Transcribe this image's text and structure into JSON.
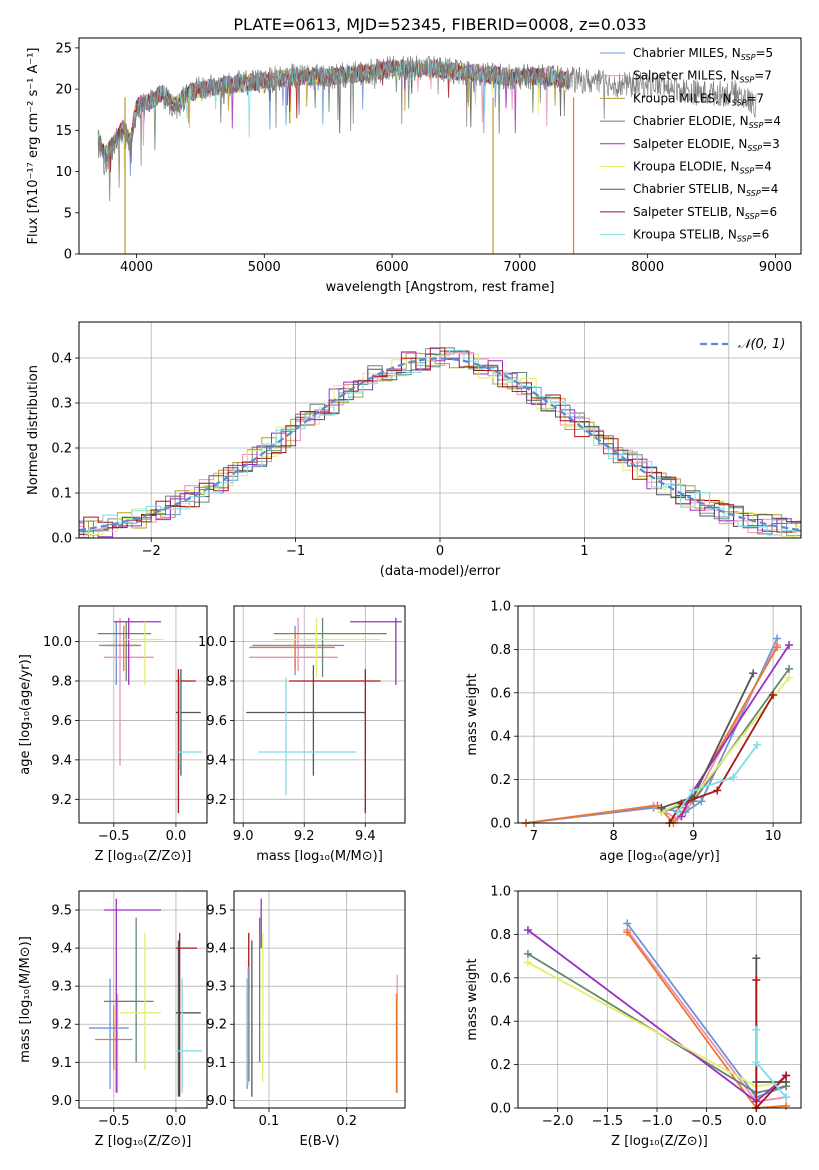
{
  "figure": {
    "title": "PLATE=0613, MJD=52345, FIBERID=0008, z=0.033"
  },
  "models": [
    {
      "label": "Chabrier MILES, N",
      "sub": "SSP",
      "suffix": "=5",
      "color": "#6b95d8"
    },
    {
      "label": "Salpeter MILES, N",
      "sub": "SSP",
      "suffix": "=7",
      "color": "#ef8fb8"
    },
    {
      "label": "Kroupa MILES, N",
      "sub": "SSP",
      "suffix": "=7",
      "color": "#b89b2a"
    },
    {
      "label": "Chabrier ELODIE, N",
      "sub": "SSP",
      "suffix": "=4",
      "color": "#66876e"
    },
    {
      "label": "Salpeter ELODIE, N",
      "sub": "SSP",
      "suffix": "=3",
      "color": "#9b30c0"
    },
    {
      "label": "Kroupa ELODIE, N",
      "sub": "SSP",
      "suffix": "=4",
      "color": "#e3ee6a"
    },
    {
      "label": "Chabrier STELIB, N",
      "sub": "SSP",
      "suffix": "=4",
      "color": "#555555"
    },
    {
      "label": "Salpeter STELIB, N",
      "sub": "SSP",
      "suffix": "=6",
      "color": "#aa1515"
    },
    {
      "label": "Kroupa STELIB, N",
      "sub": "SSP",
      "suffix": "=6",
      "color": "#7fdde6"
    }
  ],
  "chart_data": [
    {
      "id": "spectrum",
      "type": "line",
      "xlabel": "wavelength [Angstrom, rest frame]",
      "ylabel": "Flux [fλ10⁻¹⁷ erg cm⁻² s⁻¹ A⁻¹]",
      "xlim": [
        3550,
        9200
      ],
      "ylim": [
        0,
        26.2
      ],
      "xticks": [
        4000,
        5000,
        6000,
        7000,
        8000,
        9000
      ],
      "yticks": [
        0,
        5,
        10,
        15,
        20,
        25
      ],
      "data_series": {
        "name": "data",
        "color": "#808080",
        "x": [
          3700,
          3750,
          3800,
          3850,
          3900,
          3950,
          4000,
          4100,
          4200,
          4300,
          4400,
          4500,
          4700,
          5000,
          5200,
          5500,
          5800,
          6000,
          6300,
          6600,
          6900,
          7200,
          7500,
          7800,
          8100,
          8400,
          8700,
          8850
        ],
        "y": [
          13.5,
          11,
          12.5,
          14,
          15,
          13,
          17.5,
          18.5,
          19.5,
          17.5,
          19.5,
          20,
          20.5,
          21,
          21.5,
          21.5,
          22,
          22.5,
          22.5,
          22,
          21.5,
          21.5,
          21,
          20.5,
          20.5,
          19.5,
          19.5,
          18
        ]
      },
      "model_series": {
        "name": "model",
        "color": "#7fdde6",
        "x": [
          3700,
          3750,
          3800,
          3850,
          3900,
          3950,
          4000,
          4100,
          4200,
          4300,
          4400,
          4500,
          4700,
          5000,
          5200,
          5500,
          5800,
          6000,
          6300,
          6600,
          6900,
          7200,
          7400
        ],
        "y": [
          14,
          12,
          13,
          14,
          15.5,
          13.5,
          18,
          18.5,
          19.5,
          18,
          19.5,
          20,
          20.5,
          21,
          21.5,
          21.5,
          22,
          22.5,
          22.5,
          22,
          21.5,
          21.5,
          21
        ]
      }
    },
    {
      "id": "residuals",
      "type": "step",
      "xlabel": "(data-model)/error",
      "ylabel": "Normed distribution",
      "xlim": [
        -2.5,
        2.5
      ],
      "ylim": [
        0,
        0.48
      ],
      "xticks": [
        -2,
        -1,
        0,
        1,
        2
      ],
      "xticklabels": [
        "−2",
        "−1",
        "0",
        "1",
        "2"
      ],
      "yticks": [
        0.0,
        0.1,
        0.2,
        0.3,
        0.4
      ],
      "yticklabels": [
        "0.0",
        "0.1",
        "0.2",
        "0.3",
        "0.4"
      ],
      "legend": "𝒩(0, 1)",
      "gaussian": {
        "mu": 0,
        "sigma": 1,
        "color": "#5b8ad6"
      }
    },
    {
      "id": "age-vs-Z",
      "type": "errorbar",
      "xlabel": "Z [log₁₀(Z/Z⊙)]",
      "ylabel": "age  [log₁₀(age/yr)]",
      "xlim": [
        -0.78,
        0.25
      ],
      "ylim": [
        9.08,
        10.18
      ],
      "xticks": [
        -0.5,
        0.0
      ],
      "xticklabels": [
        "−0.5",
        "0.0"
      ],
      "yticks": [
        9.2,
        9.4,
        9.6,
        9.8,
        10.0
      ],
      "yticklabels": [
        "9.2",
        "9.4",
        "9.6",
        "9.8",
        "10.0"
      ],
      "points": [
        {
          "x": -0.48,
          "y": 9.98,
          "xl": -0.62,
          "xh": -0.28,
          "yl": 9.78,
          "yh": 10.1,
          "color": "#6b95d8"
        },
        {
          "x": -0.45,
          "y": 9.92,
          "xl": -0.58,
          "xh": -0.18,
          "yl": 9.37,
          "yh": 10.12,
          "color": "#ef8fb8"
        },
        {
          "x": -0.42,
          "y": 9.98,
          "xl": -0.56,
          "xh": -0.3,
          "yl": 9.85,
          "yh": 10.08,
          "color": "#e87a2a"
        },
        {
          "x": -0.4,
          "y": 10.04,
          "xl": -0.63,
          "xh": -0.2,
          "yl": 9.8,
          "yh": 10.1,
          "color": "#66876e"
        },
        {
          "x": -0.38,
          "y": 10.1,
          "xl": -0.5,
          "xh": -0.12,
          "yl": 9.78,
          "yh": 10.12,
          "color": "#9b30c0"
        },
        {
          "x": -0.25,
          "y": 10.01,
          "xl": -0.4,
          "xh": -0.1,
          "yl": 9.78,
          "yh": 10.1,
          "color": "#e3ee6a"
        },
        {
          "x": 0.04,
          "y": 9.64,
          "xl": 0.0,
          "xh": 0.2,
          "yl": 9.32,
          "yh": 9.86,
          "color": "#555555"
        },
        {
          "x": 0.02,
          "y": 9.8,
          "xl": 0.0,
          "xh": 0.16,
          "yl": 9.13,
          "yh": 9.86,
          "color": "#aa1515"
        },
        {
          "x": 0.03,
          "y": 9.44,
          "xl": 0.0,
          "xh": 0.21,
          "yl": 9.35,
          "yh": 9.82,
          "color": "#7fdde6"
        }
      ]
    },
    {
      "id": "age-vs-mass",
      "type": "errorbar",
      "xlabel": "mass [log₁₀(M/M⊙)]",
      "ylabel": "",
      "xlim": [
        8.97,
        9.53
      ],
      "ylim": [
        9.08,
        10.18
      ],
      "xticks": [
        9.0,
        9.2,
        9.4
      ],
      "xticklabels": [
        "9.0",
        "9.2",
        "9.4"
      ],
      "yticks": [
        9.2,
        9.4,
        9.6,
        9.8,
        10.0
      ],
      "yticklabels": [
        "9.2",
        "9.4",
        "9.6",
        "9.8",
        "10.0"
      ],
      "points": [
        {
          "x": 9.17,
          "y": 9.98,
          "xl": 9.03,
          "xh": 9.33,
          "yl": 9.83,
          "yh": 10.08,
          "color": "#6b95d8"
        },
        {
          "x": 9.18,
          "y": 9.92,
          "xl": 9.02,
          "xh": 9.31,
          "yl": 9.85,
          "yh": 10.12,
          "color": "#ef8fb8"
        },
        {
          "x": 9.17,
          "y": 9.97,
          "xl": 9.02,
          "xh": 9.3,
          "yl": 9.86,
          "yh": 10.05,
          "color": "#e87a2a"
        },
        {
          "x": 9.26,
          "y": 10.04,
          "xl": 9.1,
          "xh": 9.47,
          "yl": 9.82,
          "yh": 10.12,
          "color": "#66876e"
        },
        {
          "x": 9.5,
          "y": 10.1,
          "xl": 9.35,
          "xh": 9.52,
          "yl": 9.78,
          "yh": 10.12,
          "color": "#9b30c0"
        },
        {
          "x": 9.24,
          "y": 10.01,
          "xl": 9.1,
          "xh": 9.45,
          "yl": 9.82,
          "yh": 10.12,
          "color": "#e3ee6a"
        },
        {
          "x": 9.23,
          "y": 9.64,
          "xl": 9.01,
          "xh": 9.4,
          "yl": 9.32,
          "yh": 9.88,
          "color": "#555555"
        },
        {
          "x": 9.4,
          "y": 9.8,
          "xl": 9.15,
          "xh": 9.45,
          "yl": 9.13,
          "yh": 9.86,
          "color": "#aa1515"
        },
        {
          "x": 9.14,
          "y": 9.44,
          "xl": 9.05,
          "xh": 9.37,
          "yl": 9.22,
          "yh": 9.82,
          "color": "#7fdde6"
        }
      ]
    },
    {
      "id": "mass-weight-vs-age",
      "type": "line",
      "xlabel": "age  [log₁₀(age/yr)]",
      "ylabel": "mass weight",
      "xlim": [
        6.8,
        10.35
      ],
      "ylim": [
        0,
        1.0
      ],
      "xticks": [
        7,
        8,
        9,
        10
      ],
      "yticks": [
        0.0,
        0.2,
        0.4,
        0.6,
        0.8,
        1.0
      ],
      "yticklabels": [
        "0.0",
        "0.2",
        "0.4",
        "0.6",
        "0.8",
        "1.0"
      ],
      "series": [
        {
          "color": "#6b95d8",
          "x": [
            6.9,
            8.5,
            8.9,
            9.1,
            10.05
          ],
          "y": [
            0.0,
            0.07,
            0.05,
            0.1,
            0.85
          ]
        },
        {
          "color": "#ef8fb8",
          "x": [
            6.9,
            8.5,
            8.8,
            9.0,
            10.05
          ],
          "y": [
            0.0,
            0.08,
            0.02,
            0.1,
            0.82
          ]
        },
        {
          "color": "#e87a2a",
          "x": [
            6.9,
            8.55,
            8.75,
            8.9,
            10.05
          ],
          "y": [
            0.0,
            0.08,
            0.0,
            0.07,
            0.81
          ]
        },
        {
          "color": "#66876e",
          "x": [
            8.6,
            9.0,
            10.2
          ],
          "y": [
            0.05,
            0.1,
            0.71
          ]
        },
        {
          "color": "#9b30c0",
          "x": [
            8.85,
            9.0,
            10.2
          ],
          "y": [
            0.03,
            0.15,
            0.82
          ]
        },
        {
          "color": "#e3ee6a",
          "x": [
            8.6,
            9.0,
            10.2
          ],
          "y": [
            0.05,
            0.12,
            0.67
          ]
        },
        {
          "color": "#555555",
          "x": [
            8.6,
            9.0,
            9.75
          ],
          "y": [
            0.07,
            0.12,
            0.69
          ]
        },
        {
          "color": "#aa1515",
          "x": [
            8.7,
            8.85,
            9.3,
            10.0
          ],
          "y": [
            0.0,
            0.09,
            0.15,
            0.59
          ]
        },
        {
          "color": "#7fdde6",
          "x": [
            8.8,
            9.0,
            9.5,
            9.8
          ],
          "y": [
            0.05,
            0.15,
            0.21,
            0.36
          ]
        }
      ]
    },
    {
      "id": "mass-vs-Z",
      "type": "errorbar",
      "xlabel": "Z [log₁₀(Z/Z⊙)]",
      "ylabel": "mass [log₁₀(M/M⊙)]",
      "xlim": [
        -0.78,
        0.25
      ],
      "ylim": [
        8.98,
        9.55
      ],
      "xticks": [
        -0.5,
        0.0
      ],
      "xticklabels": [
        "−0.5",
        "0.0"
      ],
      "yticks": [
        9.0,
        9.1,
        9.2,
        9.3,
        9.4,
        9.5
      ],
      "yticklabels": [
        "9.0",
        "9.1",
        "9.2",
        "9.3",
        "9.4",
        "9.5"
      ],
      "points": [
        {
          "x": -0.53,
          "y": 9.19,
          "xl": -0.7,
          "xh": -0.38,
          "yl": 9.03,
          "yh": 9.32,
          "color": "#6b95d8"
        },
        {
          "x": -0.47,
          "y": 9.26,
          "xl": -0.55,
          "xh": -0.32,
          "yl": 9.02,
          "yh": 9.28,
          "color": "#ef8fb8"
        },
        {
          "x": -0.5,
          "y": 9.16,
          "xl": -0.65,
          "xh": -0.35,
          "yl": 9.08,
          "yh": 9.25,
          "color": "#e87a2a"
        },
        {
          "x": -0.32,
          "y": 9.26,
          "xl": -0.58,
          "xh": -0.18,
          "yl": 9.1,
          "yh": 9.48,
          "color": "#66876e"
        },
        {
          "x": -0.48,
          "y": 9.5,
          "xl": -0.58,
          "xh": -0.12,
          "yl": 9.02,
          "yh": 9.53,
          "color": "#9b30c0"
        },
        {
          "x": -0.25,
          "y": 9.23,
          "xl": -0.45,
          "xh": -0.12,
          "yl": 9.08,
          "yh": 9.44,
          "color": "#e3ee6a"
        },
        {
          "x": 0.02,
          "y": 9.23,
          "xl": 0.0,
          "xh": 0.2,
          "yl": 9.01,
          "yh": 9.42,
          "color": "#555555"
        },
        {
          "x": 0.03,
          "y": 9.4,
          "xl": 0.0,
          "xh": 0.17,
          "yl": 9.01,
          "yh": 9.44,
          "color": "#aa1515"
        },
        {
          "x": 0.05,
          "y": 9.13,
          "xl": 0.0,
          "xh": 0.21,
          "yl": 9.02,
          "yh": 9.32,
          "color": "#7fdde6"
        }
      ]
    },
    {
      "id": "mass-vs-EBV",
      "type": "errorbar",
      "xlabel": "E(B-V)",
      "ylabel": "",
      "xlim": [
        0.055,
        0.275
      ],
      "ylim": [
        8.98,
        9.55
      ],
      "xticks": [
        0.1,
        0.2
      ],
      "xticklabels": [
        "0.1",
        "0.2"
      ],
      "yticks": [
        9.0,
        9.1,
        9.2,
        9.3,
        9.4,
        9.5
      ],
      "yticklabels": [
        "9.0",
        "9.1",
        "9.2",
        "9.3",
        "9.4",
        "9.5"
      ],
      "points": [
        {
          "x": 0.072,
          "y": 9.19,
          "yl": 9.03,
          "yh": 9.32,
          "color": "#6b95d8"
        },
        {
          "x": 0.265,
          "y": 9.26,
          "yl": 9.02,
          "yh": 9.33,
          "color": "#ef8fb8"
        },
        {
          "x": 0.264,
          "y": 9.16,
          "yl": 9.02,
          "yh": 9.28,
          "color": "#e87a2a"
        },
        {
          "x": 0.088,
          "y": 9.26,
          "yl": 9.1,
          "yh": 9.48,
          "color": "#66876e"
        },
        {
          "x": 0.09,
          "y": 9.5,
          "yl": 9.4,
          "yh": 9.53,
          "color": "#9b30c0"
        },
        {
          "x": 0.092,
          "y": 9.23,
          "yl": 9.05,
          "yh": 9.44,
          "color": "#e3ee6a"
        },
        {
          "x": 0.078,
          "y": 9.23,
          "yl": 9.01,
          "yh": 9.42,
          "color": "#555555"
        },
        {
          "x": 0.074,
          "y": 9.4,
          "yl": 9.05,
          "yh": 9.44,
          "color": "#aa1515"
        },
        {
          "x": 0.073,
          "y": 9.13,
          "yl": 9.04,
          "yh": 9.35,
          "color": "#7fdde6"
        }
      ]
    },
    {
      "id": "mass-weight-vs-Z",
      "type": "line",
      "xlabel": "Z [log₁₀(Z/Z⊙)]",
      "ylabel": "mass weight",
      "xlim": [
        -2.4,
        0.45
      ],
      "ylim": [
        0,
        1.0
      ],
      "xticks": [
        -2.0,
        -1.5,
        -1.0,
        -0.5,
        0.0
      ],
      "xticklabels": [
        "−2.0",
        "−1.5",
        "−1.0",
        "−0.5",
        "0.0"
      ],
      "yticks": [
        0.0,
        0.2,
        0.4,
        0.6,
        0.8,
        1.0
      ],
      "yticklabels": [
        "0.0",
        "0.2",
        "0.4",
        "0.6",
        "0.8",
        "1.0"
      ],
      "series": [
        {
          "color": "#6b95d8",
          "x": [
            -1.3,
            0.0,
            0.3
          ],
          "y": [
            0.85,
            0.05,
            0.1
          ]
        },
        {
          "color": "#ef8fb8",
          "x": [
            -1.3,
            0.0,
            0.3
          ],
          "y": [
            0.82,
            0.03,
            0.05
          ]
        },
        {
          "color": "#e87a2a",
          "x": [
            -1.3,
            0.0,
            0.3
          ],
          "y": [
            0.81,
            0.0,
            0.01
          ]
        },
        {
          "color": "#66876e",
          "x": [
            -2.3,
            0.0,
            0.3
          ],
          "y": [
            0.71,
            0.07,
            0.1
          ]
        },
        {
          "color": "#9b30c0",
          "x": [
            -2.3,
            0.0,
            0.3
          ],
          "y": [
            0.82,
            0.03,
            0.15
          ]
        },
        {
          "color": "#e3ee6a",
          "x": [
            -2.3,
            0.0,
            0.3
          ],
          "y": [
            0.67,
            0.1,
            0.12
          ]
        },
        {
          "color": "#555555",
          "x": [
            0.0,
            0.0,
            0.3
          ],
          "y": [
            0.69,
            0.12,
            0.12
          ]
        },
        {
          "color": "#aa1515",
          "x": [
            0.0,
            0.0,
            0.3
          ],
          "y": [
            0.59,
            0.0,
            0.15
          ]
        },
        {
          "color": "#7fdde6",
          "x": [
            0.0,
            0.0,
            0.3
          ],
          "y": [
            0.36,
            0.21,
            0.05
          ]
        }
      ]
    }
  ]
}
